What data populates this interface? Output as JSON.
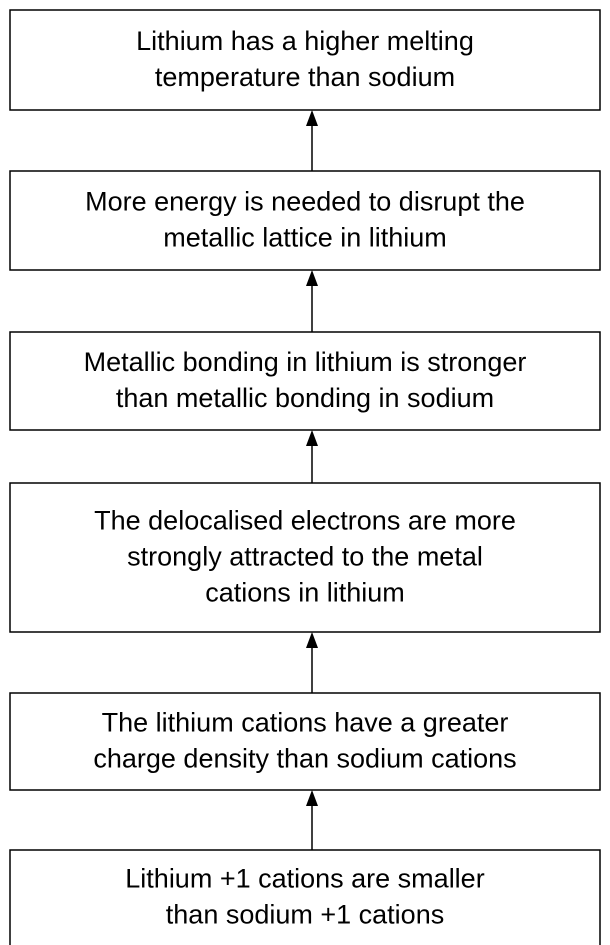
{
  "nodes": [
    {
      "lines": [
        "Lithium has a higher melting",
        "temperature than sodium"
      ]
    },
    {
      "lines": [
        "More energy is needed to disrupt the",
        "metallic lattice in lithium"
      ]
    },
    {
      "lines": [
        "Metallic bonding in lithium is stronger",
        "than metallic bonding in sodium"
      ]
    },
    {
      "lines": [
        "The delocalised electrons are more",
        "strongly attracted to the metal",
        "cations in lithium"
      ]
    },
    {
      "lines": [
        "The lithium cations have a greater",
        "charge density than sodium cations"
      ]
    },
    {
      "lines": [
        "Lithium +1 cations are smaller",
        "than sodium +1 cations"
      ]
    }
  ]
}
